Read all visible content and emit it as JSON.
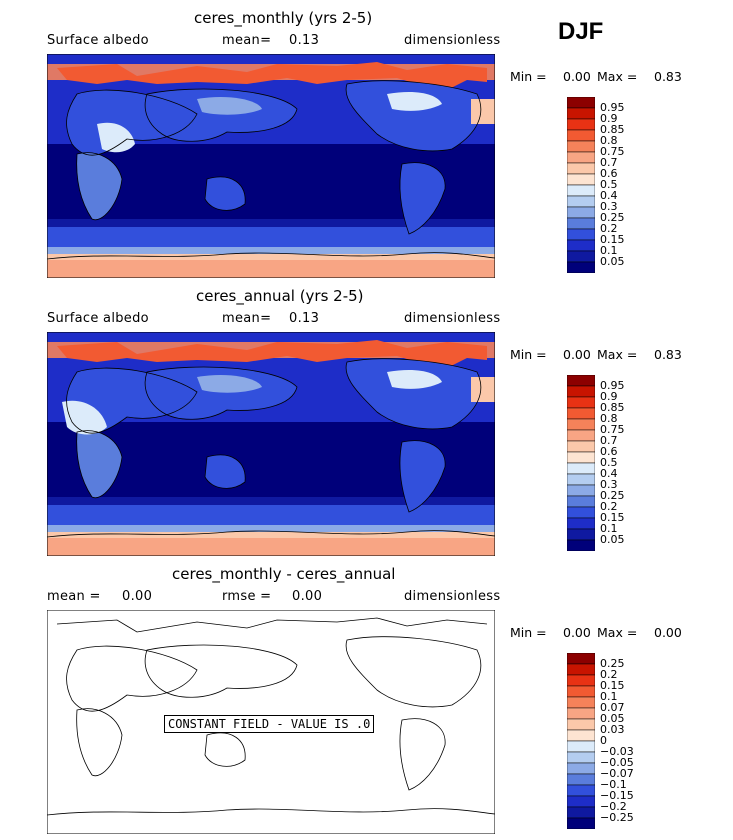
{
  "season": "DJF",
  "chart_data": [
    {
      "type": "heatmap",
      "title": "ceres_monthly (yrs 2-5)",
      "subtitle_left": "Surface albedo",
      "mean_label": "mean=",
      "mean_value": "0.13",
      "units": "dimensionless",
      "min_label": "Min =",
      "min_value": "0.00",
      "max_label": "Max =",
      "max_value": "0.83",
      "colorbar_levels": [
        "0.95",
        "0.9",
        "0.85",
        "0.8",
        "0.75",
        "0.7",
        "0.6",
        "0.5",
        "0.4",
        "0.3",
        "0.25",
        "0.2",
        "0.15",
        "0.1",
        "0.05"
      ],
      "colorbar_colors": [
        "#8c0000",
        "#c81400",
        "#e83214",
        "#f25a32",
        "#f5825a",
        "#f8a584",
        "#fbc8aa",
        "#fde4d2",
        "#dcebfa",
        "#b4cdf0",
        "#8caae6",
        "#5a7ddc",
        "#3250dc",
        "#1e2dc8",
        "#0f19a0",
        "#00007a"
      ]
    },
    {
      "type": "heatmap",
      "title": "ceres_annual (yrs 2-5)",
      "subtitle_left": "Surface albedo",
      "mean_label": "mean=",
      "mean_value": "0.13",
      "units": "dimensionless",
      "min_label": "Min =",
      "min_value": "0.00",
      "max_label": "Max =",
      "max_value": "0.83",
      "colorbar_levels": [
        "0.95",
        "0.9",
        "0.85",
        "0.8",
        "0.75",
        "0.7",
        "0.6",
        "0.5",
        "0.4",
        "0.3",
        "0.25",
        "0.2",
        "0.15",
        "0.1",
        "0.05"
      ],
      "colorbar_colors": [
        "#8c0000",
        "#c81400",
        "#e83214",
        "#f25a32",
        "#f5825a",
        "#f8a584",
        "#fbc8aa",
        "#fde4d2",
        "#dcebfa",
        "#b4cdf0",
        "#8caae6",
        "#5a7ddc",
        "#3250dc",
        "#1e2dc8",
        "#0f19a0",
        "#00007a"
      ]
    },
    {
      "type": "heatmap",
      "title": "ceres_monthly - ceres_annual",
      "mean_label": "mean =",
      "mean_value": "0.00",
      "rmse_label": "rmse =",
      "rmse_value": "0.00",
      "units": "dimensionless",
      "min_label": "Min =",
      "min_value": "0.00",
      "max_label": "Max =",
      "max_value": "0.00",
      "annotation": "CONSTANT FIELD - VALUE IS .0",
      "colorbar_levels": [
        "0.25",
        "0.2",
        "0.15",
        "0.1",
        "0.07",
        "0.05",
        "0.03",
        "0",
        "−0.03",
        "−0.05",
        "−0.07",
        "−0.1",
        "−0.15",
        "−0.2",
        "−0.25"
      ],
      "colorbar_colors": [
        "#8c0000",
        "#c81400",
        "#e83214",
        "#f25a32",
        "#f5825a",
        "#f8a584",
        "#fbc8aa",
        "#fde4d2",
        "#dcebfa",
        "#b4cdf0",
        "#8caae6",
        "#5a7ddc",
        "#3250dc",
        "#1e2dc8",
        "#0f19a0",
        "#00007a"
      ]
    }
  ]
}
